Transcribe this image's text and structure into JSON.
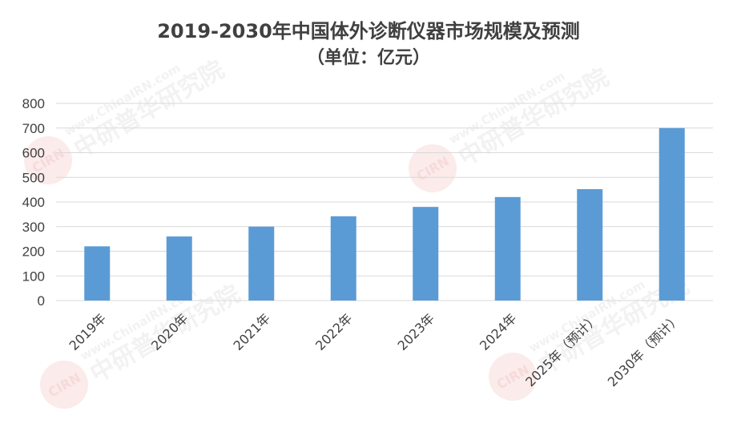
{
  "chart_data": {
    "type": "bar",
    "title": "2019-2030年中国体外诊断仪器市场规模及预测",
    "subtitle": "（单位：亿元）",
    "categories": [
      "2019年",
      "2020年",
      "2021年",
      "2022年",
      "2023年",
      "2024年",
      "2025年（预计）",
      "2030年（预计）"
    ],
    "values": [
      220,
      260,
      300,
      342,
      380,
      420,
      452,
      700
    ],
    "ylim": [
      0,
      800
    ],
    "yticks": [
      0,
      100,
      200,
      300,
      400,
      500,
      600,
      700,
      800
    ],
    "grid": true,
    "bar_color": "#5b9bd5",
    "grid_color": "#d9d9d9"
  },
  "watermark": {
    "url": "www.ChinaIRN.com",
    "name": "中研普华研究院",
    "logo": "CIRN"
  }
}
